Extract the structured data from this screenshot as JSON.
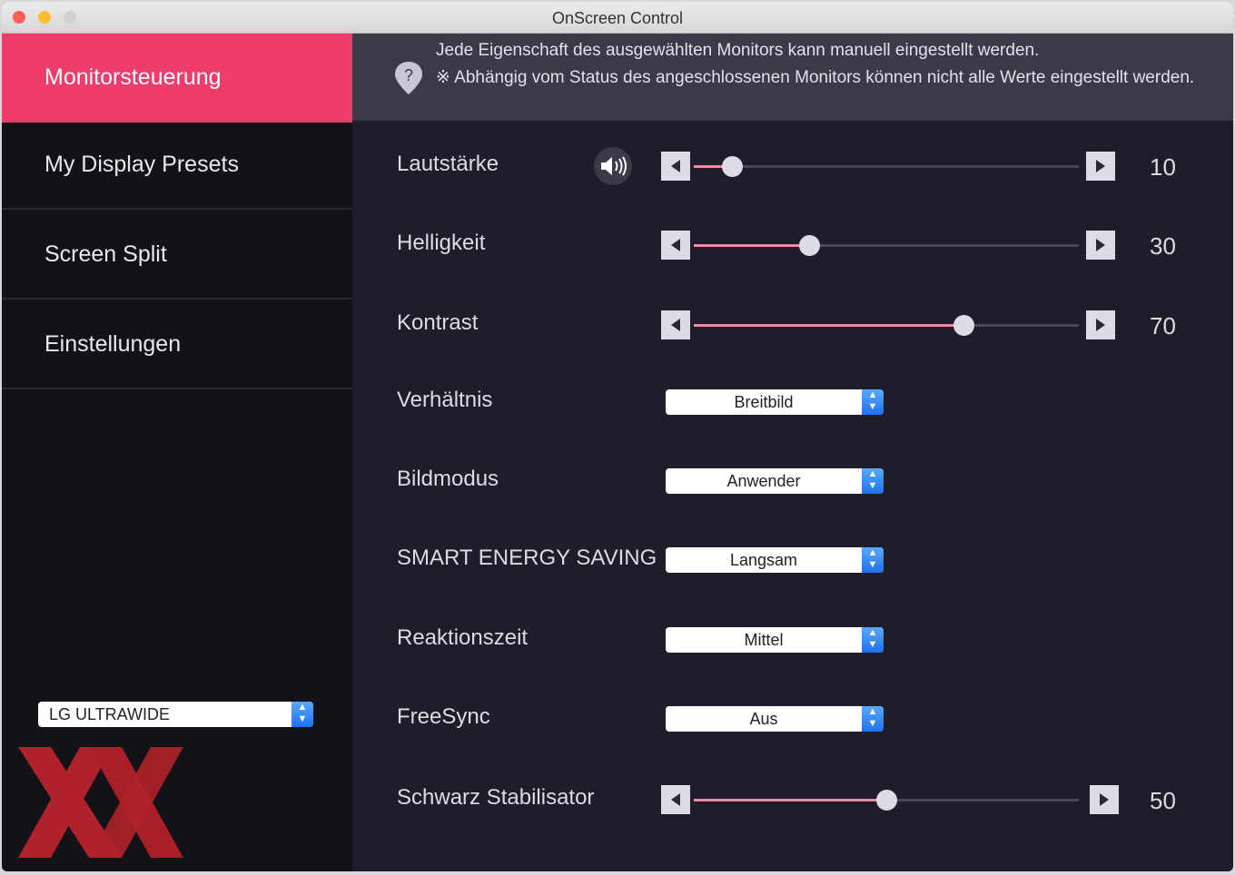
{
  "window": {
    "title": "OnScreen Control"
  },
  "sidebar": {
    "items": [
      {
        "label": "Monitorsteuerung",
        "active": true
      },
      {
        "label": "My Display Presets"
      },
      {
        "label": "Screen Split"
      },
      {
        "label": "Einstellungen"
      }
    ],
    "monitor_select": "LG ULTRAWIDE",
    "watermark_logo": "XX"
  },
  "info": {
    "icon": "question-pin-icon",
    "line1": "Jede Eigenschaft des ausgewählten Monitors kann manuell eingestellt werden.",
    "line2": "※ Abhängig vom Status des angeschlossenen Monitors können nicht alle Werte eingestellt werden."
  },
  "controls": {
    "volume": {
      "label": "Lautstärke",
      "value": "10",
      "percent": 10,
      "icon": "speaker-icon"
    },
    "brightness": {
      "label": "Helligkeit",
      "value": "30",
      "percent": 30
    },
    "contrast": {
      "label": "Kontrast",
      "value": "70",
      "percent": 70
    },
    "ratio": {
      "label": "Verhältnis",
      "selected": "Breitbild"
    },
    "picture_mode": {
      "label": "Bildmodus",
      "selected": "Anwender"
    },
    "smart_energy": {
      "label": "SMART ENERGY SAVING",
      "selected": "Langsam"
    },
    "response_time": {
      "label": "Reaktionszeit",
      "selected": "Mittel"
    },
    "freesync": {
      "label": "FreeSync",
      "selected": "Aus"
    },
    "black_stabilizer": {
      "label": "Schwarz Stabilisator",
      "value": "50",
      "percent": 50
    }
  },
  "colors": {
    "accent": "#ee3d6c",
    "slider_fill": "#f28aa4",
    "sidebar_bg": "#121219",
    "main_bg": "#1e1e2a",
    "logo_red": "#b0222a"
  }
}
